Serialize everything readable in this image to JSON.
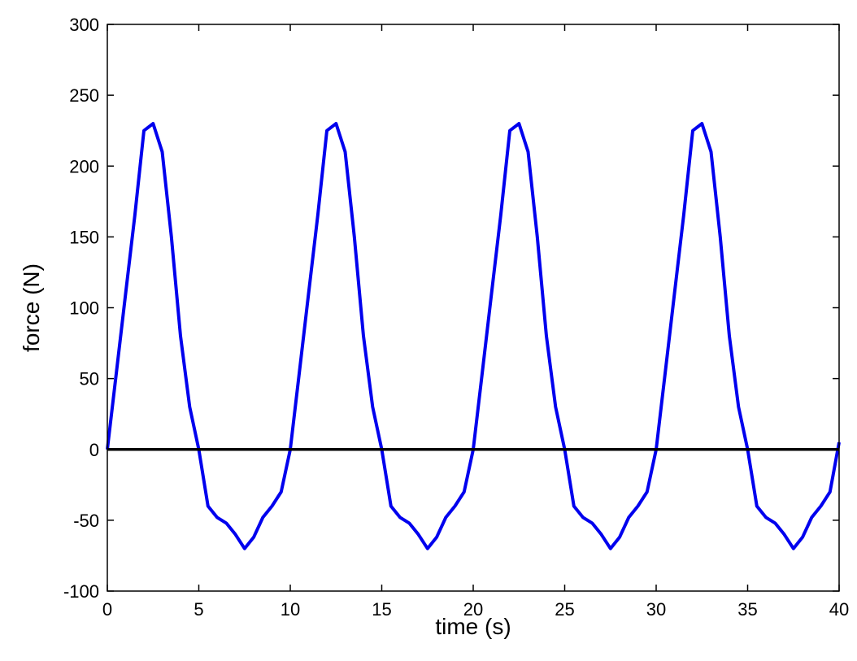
{
  "chart_data": {
    "type": "line",
    "title": "",
    "xlabel": "time (s)",
    "ylabel": "force (N)",
    "xlim": [
      0,
      40
    ],
    "ylim": [
      -100,
      300
    ],
    "xticks": [
      0,
      5,
      10,
      15,
      20,
      25,
      30,
      35,
      40
    ],
    "yticks": [
      -100,
      -50,
      0,
      50,
      100,
      150,
      200,
      250,
      300
    ],
    "grid": false,
    "box": true,
    "series": [
      {
        "color": "#0000ee",
        "x": [
          0,
          0.5,
          1,
          1.5,
          2,
          2.5,
          3,
          3.5,
          4,
          4.5,
          5,
          5.5,
          6,
          6.5,
          7,
          7.5,
          8,
          8.5,
          9,
          9.5,
          10,
          10.5,
          11,
          11.5,
          12,
          12.5,
          13,
          13.5,
          14,
          14.5,
          15,
          15.5,
          16,
          16.5,
          17,
          17.5,
          18,
          18.5,
          19,
          19.5,
          20,
          20.5,
          21,
          21.5,
          22,
          22.5,
          23,
          23.5,
          24,
          24.5,
          25,
          25.5,
          26,
          26.5,
          27,
          27.5,
          28,
          28.5,
          29,
          29.5,
          30,
          30.5,
          31,
          31.5,
          32,
          32.5,
          33,
          33.5,
          34,
          34.5,
          35,
          35.5,
          36,
          36.5,
          37,
          37.5,
          38,
          38.5,
          39,
          39.5,
          40
        ],
        "y": [
          0,
          55,
          110,
          165,
          225,
          230,
          210,
          150,
          80,
          30,
          0,
          -40,
          -48,
          -52,
          -60,
          -70,
          -62,
          -48,
          -40,
          -30,
          0,
          55,
          110,
          165,
          225,
          230,
          210,
          150,
          80,
          30,
          0,
          -40,
          -48,
          -52,
          -60,
          -70,
          -62,
          -48,
          -40,
          -30,
          0,
          55,
          110,
          165,
          225,
          230,
          210,
          150,
          80,
          30,
          0,
          -40,
          -48,
          -52,
          -60,
          -70,
          -62,
          -48,
          -40,
          -30,
          0,
          55,
          110,
          165,
          225,
          230,
          210,
          150,
          80,
          30,
          0,
          -40,
          -48,
          -52,
          -60,
          -70,
          -62,
          -48,
          -40,
          -30,
          5
        ]
      },
      {
        "color": "#000000",
        "x": [
          0,
          40
        ],
        "y": [
          0,
          0
        ]
      }
    ]
  }
}
